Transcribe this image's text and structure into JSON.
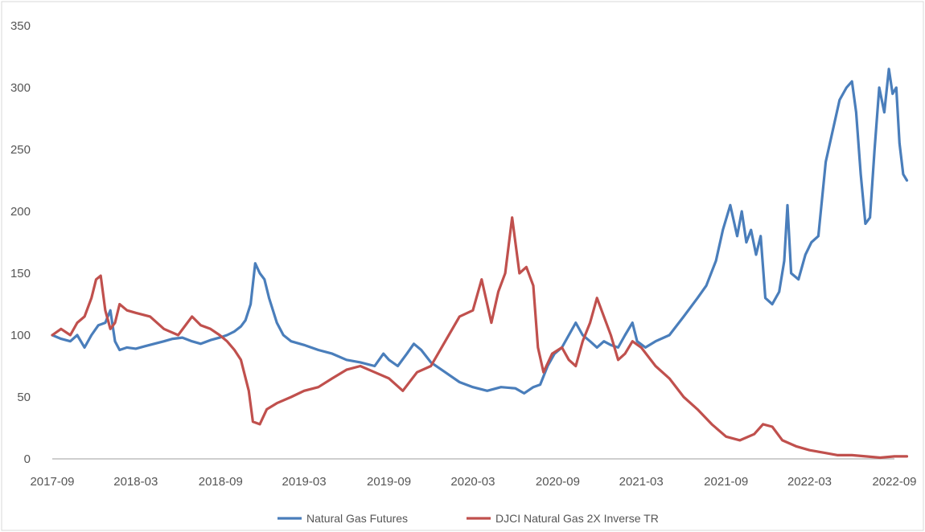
{
  "chart_data": {
    "type": "line",
    "title": "",
    "xlabel": "",
    "ylabel": "",
    "ylim": [
      0,
      350
    ],
    "y_ticks": [
      "0",
      "50",
      "100",
      "150",
      "200",
      "250",
      "300",
      "350"
    ],
    "x_ticks": [
      "2017-09",
      "2018-03",
      "2018-09",
      "2019-03",
      "2019-09",
      "2020-03",
      "2020-09",
      "2021-03",
      "2021-09",
      "2022-03",
      "2022-09"
    ],
    "grid": false,
    "legend_position": "bottom",
    "series": [
      {
        "name": "Natural Gas Futures",
        "color": "#4a7ebb",
        "points": [
          [
            "2017-09-01",
            100
          ],
          [
            "2017-09-20",
            97
          ],
          [
            "2017-10-10",
            95
          ],
          [
            "2017-10-25",
            100
          ],
          [
            "2017-11-10",
            90
          ],
          [
            "2017-11-25",
            100
          ],
          [
            "2017-12-10",
            108
          ],
          [
            "2017-12-25",
            110
          ],
          [
            "2018-01-05",
            120
          ],
          [
            "2018-01-15",
            95
          ],
          [
            "2018-01-25",
            88
          ],
          [
            "2018-02-10",
            90
          ],
          [
            "2018-03-01",
            89
          ],
          [
            "2018-03-20",
            91
          ],
          [
            "2018-04-10",
            93
          ],
          [
            "2018-05-01",
            95
          ],
          [
            "2018-05-20",
            97
          ],
          [
            "2018-06-10",
            98
          ],
          [
            "2018-07-01",
            95
          ],
          [
            "2018-07-20",
            93
          ],
          [
            "2018-08-10",
            96
          ],
          [
            "2018-08-30",
            98
          ],
          [
            "2018-09-15",
            100
          ],
          [
            "2018-10-01",
            103
          ],
          [
            "2018-10-15",
            107
          ],
          [
            "2018-10-25",
            112
          ],
          [
            "2018-11-05",
            125
          ],
          [
            "2018-11-15",
            158
          ],
          [
            "2018-11-25",
            150
          ],
          [
            "2018-12-05",
            145
          ],
          [
            "2018-12-15",
            130
          ],
          [
            "2019-01-01",
            110
          ],
          [
            "2019-01-15",
            100
          ],
          [
            "2019-02-01",
            95
          ],
          [
            "2019-03-01",
            92
          ],
          [
            "2019-04-01",
            88
          ],
          [
            "2019-05-01",
            85
          ],
          [
            "2019-06-01",
            80
          ],
          [
            "2019-07-01",
            78
          ],
          [
            "2019-08-01",
            75
          ],
          [
            "2019-08-20",
            85
          ],
          [
            "2019-09-01",
            80
          ],
          [
            "2019-09-20",
            75
          ],
          [
            "2019-10-10",
            85
          ],
          [
            "2019-10-25",
            93
          ],
          [
            "2019-11-10",
            88
          ],
          [
            "2019-12-01",
            78
          ],
          [
            "2020-01-01",
            70
          ],
          [
            "2020-02-01",
            62
          ],
          [
            "2020-03-01",
            58
          ],
          [
            "2020-04-01",
            55
          ],
          [
            "2020-05-01",
            58
          ],
          [
            "2020-06-01",
            57
          ],
          [
            "2020-06-20",
            53
          ],
          [
            "2020-07-10",
            58
          ],
          [
            "2020-07-25",
            60
          ],
          [
            "2020-08-10",
            75
          ],
          [
            "2020-08-25",
            85
          ],
          [
            "2020-09-10",
            90
          ],
          [
            "2020-09-25",
            100
          ],
          [
            "2020-10-10",
            110
          ],
          [
            "2020-10-25",
            100
          ],
          [
            "2020-11-10",
            95
          ],
          [
            "2020-11-25",
            90
          ],
          [
            "2020-12-10",
            95
          ],
          [
            "2020-12-25",
            92
          ],
          [
            "2021-01-10",
            90
          ],
          [
            "2021-01-25",
            100
          ],
          [
            "2021-02-10",
            110
          ],
          [
            "2021-02-20",
            95
          ],
          [
            "2021-03-10",
            90
          ],
          [
            "2021-04-01",
            95
          ],
          [
            "2021-05-01",
            100
          ],
          [
            "2021-06-01",
            115
          ],
          [
            "2021-07-01",
            130
          ],
          [
            "2021-07-20",
            140
          ],
          [
            "2021-08-10",
            160
          ],
          [
            "2021-08-25",
            185
          ],
          [
            "2021-09-10",
            205
          ],
          [
            "2021-09-25",
            180
          ],
          [
            "2021-10-05",
            200
          ],
          [
            "2021-10-15",
            175
          ],
          [
            "2021-10-25",
            185
          ],
          [
            "2021-11-05",
            165
          ],
          [
            "2021-11-15",
            180
          ],
          [
            "2021-11-25",
            130
          ],
          [
            "2021-12-10",
            125
          ],
          [
            "2021-12-25",
            135
          ],
          [
            "2022-01-05",
            160
          ],
          [
            "2022-01-12",
            205
          ],
          [
            "2022-01-20",
            150
          ],
          [
            "2022-02-05",
            145
          ],
          [
            "2022-02-20",
            165
          ],
          [
            "2022-03-05",
            175
          ],
          [
            "2022-03-20",
            180
          ],
          [
            "2022-04-05",
            240
          ],
          [
            "2022-04-20",
            265
          ],
          [
            "2022-05-05",
            290
          ],
          [
            "2022-05-20",
            300
          ],
          [
            "2022-06-01",
            305
          ],
          [
            "2022-06-10",
            280
          ],
          [
            "2022-06-20",
            230
          ],
          [
            "2022-06-30",
            190
          ],
          [
            "2022-07-10",
            195
          ],
          [
            "2022-07-20",
            250
          ],
          [
            "2022-07-30",
            300
          ],
          [
            "2022-08-10",
            280
          ],
          [
            "2022-08-20",
            315
          ],
          [
            "2022-08-28",
            295
          ],
          [
            "2022-09-05",
            300
          ],
          [
            "2022-09-12",
            255
          ],
          [
            "2022-09-20",
            230
          ],
          [
            "2022-09-28",
            225
          ]
        ]
      },
      {
        "name": "DJCI Natural Gas 2X Inverse TR",
        "color": "#c0504d",
        "points": [
          [
            "2017-09-01",
            100
          ],
          [
            "2017-09-20",
            105
          ],
          [
            "2017-10-10",
            100
          ],
          [
            "2017-10-25",
            110
          ],
          [
            "2017-11-10",
            115
          ],
          [
            "2017-11-25",
            130
          ],
          [
            "2017-12-05",
            145
          ],
          [
            "2017-12-15",
            148
          ],
          [
            "2017-12-25",
            120
          ],
          [
            "2018-01-05",
            105
          ],
          [
            "2018-01-15",
            110
          ],
          [
            "2018-01-25",
            125
          ],
          [
            "2018-02-10",
            120
          ],
          [
            "2018-03-01",
            118
          ],
          [
            "2018-04-01",
            115
          ],
          [
            "2018-05-01",
            105
          ],
          [
            "2018-06-01",
            100
          ],
          [
            "2018-07-01",
            115
          ],
          [
            "2018-07-20",
            108
          ],
          [
            "2018-08-10",
            105
          ],
          [
            "2018-08-30",
            100
          ],
          [
            "2018-09-15",
            95
          ],
          [
            "2018-10-01",
            88
          ],
          [
            "2018-10-15",
            80
          ],
          [
            "2018-11-01",
            55
          ],
          [
            "2018-11-10",
            30
          ],
          [
            "2018-11-25",
            28
          ],
          [
            "2018-12-10",
            40
          ],
          [
            "2019-01-01",
            45
          ],
          [
            "2019-02-01",
            50
          ],
          [
            "2019-03-01",
            55
          ],
          [
            "2019-04-01",
            58
          ],
          [
            "2019-05-01",
            65
          ],
          [
            "2019-06-01",
            72
          ],
          [
            "2019-07-01",
            75
          ],
          [
            "2019-08-01",
            70
          ],
          [
            "2019-09-01",
            65
          ],
          [
            "2019-10-01",
            55
          ],
          [
            "2019-11-01",
            70
          ],
          [
            "2019-12-01",
            75
          ],
          [
            "2020-01-01",
            95
          ],
          [
            "2020-02-01",
            115
          ],
          [
            "2020-03-01",
            120
          ],
          [
            "2020-03-20",
            145
          ],
          [
            "2020-04-10",
            110
          ],
          [
            "2020-04-25",
            135
          ],
          [
            "2020-05-10",
            150
          ],
          [
            "2020-05-25",
            195
          ],
          [
            "2020-06-10",
            150
          ],
          [
            "2020-06-25",
            155
          ],
          [
            "2020-07-10",
            140
          ],
          [
            "2020-07-20",
            90
          ],
          [
            "2020-08-01",
            70
          ],
          [
            "2020-08-20",
            85
          ],
          [
            "2020-09-10",
            90
          ],
          [
            "2020-09-25",
            80
          ],
          [
            "2020-10-10",
            75
          ],
          [
            "2020-10-25",
            95
          ],
          [
            "2020-11-10",
            110
          ],
          [
            "2020-11-25",
            130
          ],
          [
            "2020-12-10",
            115
          ],
          [
            "2020-12-25",
            100
          ],
          [
            "2021-01-10",
            80
          ],
          [
            "2021-01-25",
            85
          ],
          [
            "2021-02-10",
            95
          ],
          [
            "2021-03-01",
            90
          ],
          [
            "2021-04-01",
            75
          ],
          [
            "2021-05-01",
            65
          ],
          [
            "2021-06-01",
            50
          ],
          [
            "2021-07-01",
            40
          ],
          [
            "2021-08-01",
            28
          ],
          [
            "2021-09-01",
            18
          ],
          [
            "2021-10-01",
            15
          ],
          [
            "2021-11-01",
            20
          ],
          [
            "2021-11-20",
            28
          ],
          [
            "2021-12-10",
            26
          ],
          [
            "2022-01-01",
            15
          ],
          [
            "2022-02-01",
            10
          ],
          [
            "2022-03-01",
            7
          ],
          [
            "2022-04-01",
            5
          ],
          [
            "2022-05-01",
            3
          ],
          [
            "2022-06-01",
            3
          ],
          [
            "2022-07-01",
            2
          ],
          [
            "2022-08-01",
            1
          ],
          [
            "2022-09-01",
            2
          ],
          [
            "2022-09-28",
            2
          ]
        ]
      }
    ]
  }
}
